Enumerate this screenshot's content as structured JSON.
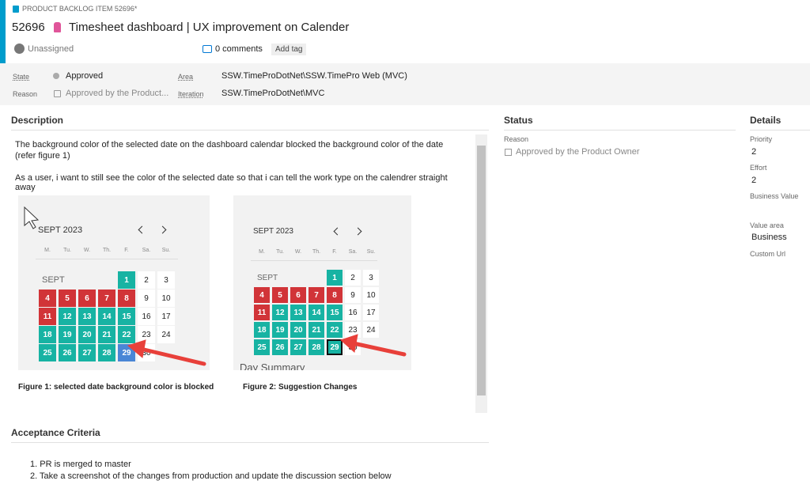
{
  "header": {
    "item_type": "PRODUCT BACKLOG ITEM 52696*",
    "id": "52696",
    "title": "Timesheet dashboard | UX improvement on Calender",
    "assigned": "Unassigned",
    "comments": "0 comments",
    "add_tag": "Add tag"
  },
  "fields": {
    "state_label": "State",
    "state": "Approved",
    "reason_label": "Reason",
    "reason": "Approved by the Product...",
    "area_label": "Area",
    "area": "SSW.TimeProDotNet\\SSW.TimePro Web (MVC)",
    "iteration_label": "Iteration",
    "iteration": "SSW.TimeProDotNet\\MVC"
  },
  "description": {
    "heading": "Description",
    "paragraphs": [
      "The background color of the selected date on the dashboard calendar blocked the background color of the date (refer figure 1)",
      "As a user, i want to still see the color of the selected date so that i can tell the work type on the calendrer straight away"
    ],
    "calendar": {
      "month": "SEPT 2023",
      "weekdays": [
        "M.",
        "Tu.",
        "W.",
        "Th.",
        "F.",
        "Sa.",
        "Su."
      ],
      "month_short": "SEPT",
      "days": [
        "1",
        "2",
        "3",
        "4",
        "5",
        "6",
        "7",
        "8",
        "9",
        "10",
        "11",
        "12",
        "13",
        "14",
        "15",
        "16",
        "17",
        "18",
        "19",
        "20",
        "21",
        "22",
        "23",
        "24",
        "25",
        "26",
        "27",
        "28",
        "29",
        "30"
      ],
      "day_colors": [
        "#17b3a3",
        "#ffffff",
        "#ffffff",
        "#d13438",
        "#d13438",
        "#d13438",
        "#d13438",
        "#d13438",
        "#ffffff",
        "#ffffff",
        "#d13438",
        "#17b3a3",
        "#17b3a3",
        "#17b3a3",
        "#17b3a3",
        "#ffffff",
        "#ffffff",
        "#17b3a3",
        "#17b3a3",
        "#17b3a3",
        "#17b3a3",
        "#17b3a3",
        "#ffffff",
        "#ffffff",
        "#17b3a3",
        "#17b3a3",
        "#17b3a3",
        "#17b3a3",
        "#17b3a3",
        "#ffffff"
      ]
    },
    "figures": [
      {
        "caption": "Figure 1: selected date background color is blocked",
        "selected_color": "#4a86d6"
      },
      {
        "caption": "Figure 2: Suggestion Changes",
        "selected_color": "#17b3a3",
        "selected_outline": "#111111",
        "footer_text": "Day Summary"
      }
    ]
  },
  "acceptance": {
    "heading": "Acceptance Criteria",
    "items": [
      "1. PR is merged to master",
      "2. Take a screenshot of the changes from production and update the discussion section below"
    ]
  },
  "status": {
    "heading": "Status",
    "reason_label": "Reason",
    "reason": "Approved by the Product Owner"
  },
  "details": {
    "heading": "Details",
    "priority_label": "Priority",
    "priority": "2",
    "effort_label": "Effort",
    "effort": "2",
    "business_value_label": "Business Value",
    "value_area_label": "Value area",
    "value_area": "Business",
    "custom_url_label": "Custom Url"
  }
}
